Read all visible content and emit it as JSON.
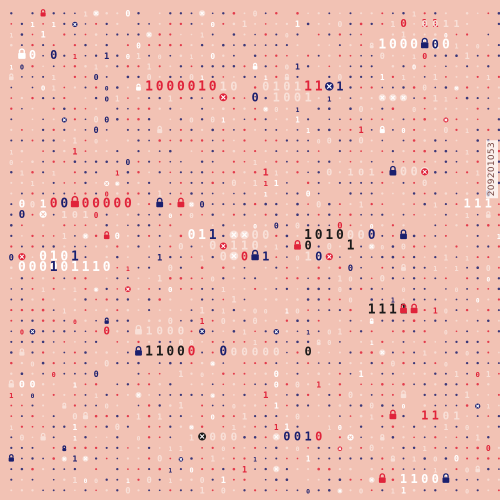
{
  "palette": {
    "background": "#f2c2b4",
    "red": "#e0233a",
    "navy": "#1a1f6e",
    "black": "#1a1a1a",
    "white": "#ffffff",
    "pale": "#f8e0d8"
  },
  "glyph_set": [
    "0",
    "1",
    "lock-icon",
    "x-circle-icon",
    "dot"
  ],
  "watermark": "209201053"
}
